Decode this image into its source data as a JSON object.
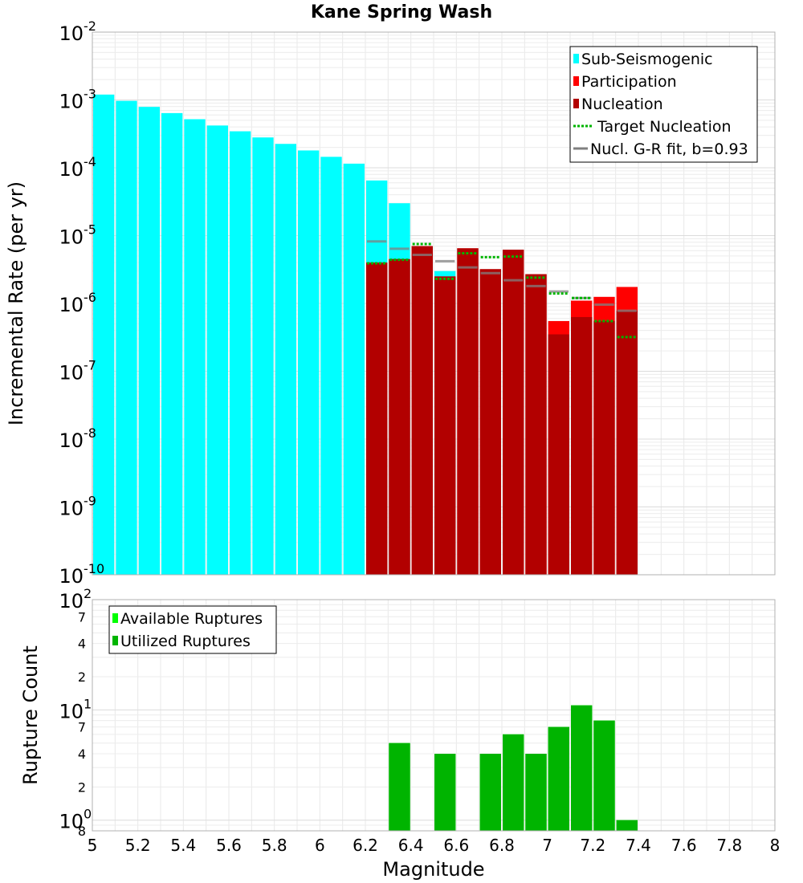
{
  "chart_data": [
    {
      "type": "bar",
      "title": "Kane Spring Wash",
      "ylabel": "Incremental Rate (per yr)",
      "xlabel": "",
      "ylog": true,
      "ylim": [
        1e-10,
        0.01
      ],
      "xlim": [
        5,
        8
      ],
      "bin_width": 0.1,
      "grid": true,
      "legend_position": "top-right",
      "y_tick_labels": [
        {
          "base": "10",
          "exp": "-10",
          "v": 1e-10
        },
        {
          "base": "10",
          "exp": "-9",
          "v": 1e-09
        },
        {
          "base": "10",
          "exp": "-8",
          "v": 1e-08
        },
        {
          "base": "10",
          "exp": "-7",
          "v": 1e-07
        },
        {
          "base": "10",
          "exp": "-6",
          "v": 1e-06
        },
        {
          "base": "10",
          "exp": "-5",
          "v": 1e-05
        },
        {
          "base": "10",
          "exp": "-4",
          "v": 0.0001
        },
        {
          "base": "10",
          "exp": "-3",
          "v": 0.001
        },
        {
          "base": "10",
          "exp": "-2",
          "v": 0.01
        }
      ],
      "legend": [
        {
          "label": "Sub-Seismogenic",
          "kind": "box",
          "color": "#00ffff"
        },
        {
          "label": "Participation",
          "kind": "box",
          "color": "#ff0000"
        },
        {
          "label": "Nucleation",
          "kind": "box",
          "color": "#b20000"
        },
        {
          "label": "Target Nucleation",
          "kind": "dotted",
          "color": "#00b400"
        },
        {
          "label": "Nucl. G-R fit, b=0.93",
          "kind": "line",
          "color": "#808080"
        }
      ],
      "series": [
        {
          "name": "Sub-Seismogenic",
          "color": "#00ffff",
          "x": [
            5.05,
            5.15,
            5.25,
            5.35,
            5.45,
            5.55,
            5.65,
            5.75,
            5.85,
            5.95,
            6.05,
            6.15,
            6.25,
            6.35,
            6.55
          ],
          "y": [
            0.0012,
            0.00097,
            0.00079,
            0.00064,
            0.00052,
            0.00042,
            0.000345,
            0.00028,
            0.000225,
            0.00018,
            0.000145,
            0.000115,
            6.5e-05,
            3e-05,
            3e-06
          ]
        },
        {
          "name": "Participation",
          "color": "#ff0000",
          "x": [
            6.25,
            6.35,
            6.45,
            6.55,
            6.65,
            6.75,
            6.85,
            6.95,
            7.05,
            7.15,
            7.25,
            7.35
          ],
          "y": [
            4e-06,
            4.5e-06,
            7e-06,
            2.5e-06,
            6.5e-06,
            3.2e-06,
            6.2e-06,
            2.7e-06,
            5.5e-07,
            1.1e-06,
            1.25e-06,
            1.75e-06
          ]
        },
        {
          "name": "Nucleation",
          "color": "#b20000",
          "x": [
            6.25,
            6.35,
            6.45,
            6.55,
            6.65,
            6.75,
            6.85,
            6.95,
            7.05,
            7.15,
            7.25,
            7.35
          ],
          "y": [
            4e-06,
            4.5e-06,
            7e-06,
            2.5e-06,
            6.5e-06,
            3.2e-06,
            6.2e-06,
            2.7e-06,
            3.5e-07,
            6.3e-07,
            5.5e-07,
            7.8e-07
          ]
        },
        {
          "name": "Target Nucleation",
          "color": "#00b400",
          "x": [
            6.25,
            6.35,
            6.45,
            6.55,
            6.65,
            6.75,
            6.85,
            6.95,
            7.05,
            7.15,
            7.25,
            7.35
          ],
          "y": [
            3.9e-06,
            4.4e-06,
            7.5e-06,
            2.3e-06,
            5.5e-06,
            4.8e-06,
            4.9e-06,
            2.4e-06,
            1.4e-06,
            1.2e-06,
            5.5e-07,
            3.2e-07
          ]
        },
        {
          "name": "Nucl. G-R fit, b=0.93",
          "color": "#808080",
          "x": [
            6.25,
            6.35,
            6.45,
            6.55,
            6.65,
            6.75,
            6.85,
            6.95,
            7.05,
            7.15,
            7.25,
            7.35
          ],
          "y": [
            8.2e-06,
            6.4e-06,
            5.2e-06,
            4.2e-06,
            3.4e-06,
            2.8e-06,
            2.2e-06,
            1.8e-06,
            1.5e-06,
            1.2e-06,
            9.6e-07,
            7.8e-07
          ]
        }
      ]
    },
    {
      "type": "bar",
      "title": "",
      "xlabel": "Magnitude",
      "ylabel": "Rupture Count",
      "ylog": true,
      "ylim": [
        0.8,
        100
      ],
      "xlim": [
        5,
        8
      ],
      "bin_width": 0.1,
      "grid": true,
      "legend_position": "top-left",
      "x_tick_labels": [
        "5",
        "5.2",
        "5.4",
        "5.6",
        "5.8",
        "6",
        "6.2",
        "6.4",
        "6.6",
        "6.8",
        "7",
        "7.2",
        "7.4",
        "7.6",
        "7.8",
        "8"
      ],
      "y_tick_labels": [
        {
          "base": "10",
          "exp": "2",
          "v": 100
        },
        {
          "base": "10",
          "exp": "1",
          "v": 10
        },
        {
          "base": "10",
          "exp": "0",
          "v": 1
        }
      ],
      "y_minor_tick_labels": [
        {
          "label": "7",
          "v": 70
        },
        {
          "label": "4",
          "v": 40
        },
        {
          "label": "2",
          "v": 20
        },
        {
          "label": "7",
          "v": 7
        },
        {
          "label": "4",
          "v": 4
        },
        {
          "label": "2",
          "v": 2
        },
        {
          "label": "8",
          "v": 0.8
        }
      ],
      "legend": [
        {
          "label": "Available Ruptures",
          "kind": "box",
          "color": "#00ff00"
        },
        {
          "label": "Utilized Ruptures",
          "kind": "box",
          "color": "#00b400"
        }
      ],
      "series": [
        {
          "name": "Available Ruptures",
          "color": "#00ff00",
          "x": [
            6.35,
            6.55,
            6.75,
            6.85,
            6.95,
            7.05,
            7.15,
            7.25,
            7.35
          ],
          "y": [
            5,
            4,
            4,
            6,
            4,
            7,
            11,
            8,
            1
          ]
        },
        {
          "name": "Utilized Ruptures",
          "color": "#00b400",
          "x": [
            6.35,
            6.55,
            6.75,
            6.85,
            6.95,
            7.05,
            7.15,
            7.25,
            7.35
          ],
          "y": [
            5,
            4,
            4,
            6,
            4,
            7,
            11,
            8,
            1
          ]
        }
      ]
    }
  ]
}
